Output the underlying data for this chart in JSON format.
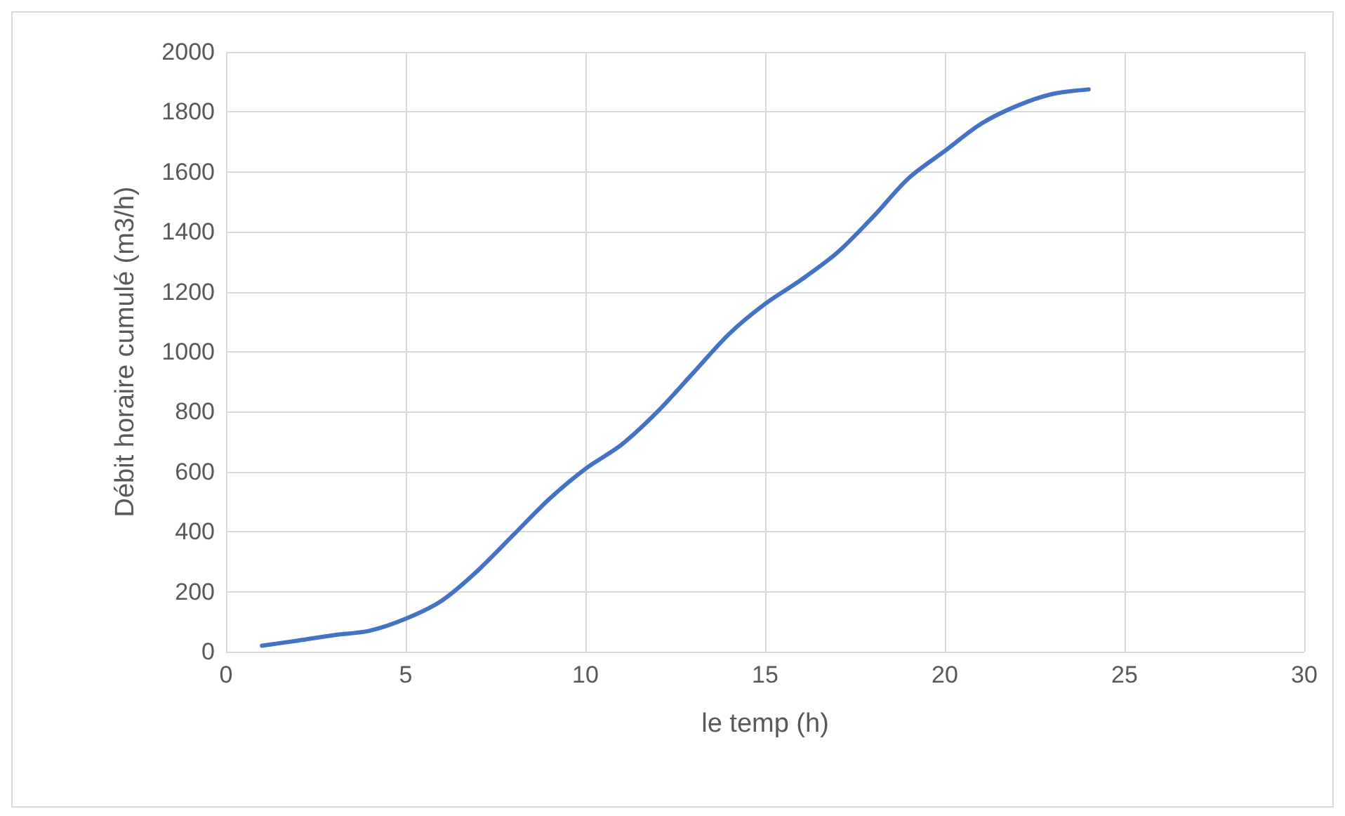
{
  "chart_data": {
    "type": "line",
    "xlabel": "le temp (h)",
    "ylabel": "Débit horaire cumulé (m3/h)",
    "x": [
      1,
      2,
      3,
      4,
      5,
      6,
      7,
      8,
      9,
      10,
      11,
      12,
      13,
      14,
      15,
      16,
      17,
      18,
      19,
      20,
      21,
      22,
      23,
      24
    ],
    "series": [
      {
        "color": "#4472c4",
        "values": [
          20,
          37,
          55,
          70,
          110,
          170,
          270,
          390,
          510,
          610,
          690,
          800,
          930,
          1060,
          1160,
          1240,
          1330,
          1450,
          1580,
          1670,
          1760,
          1820,
          1860,
          1875
        ]
      }
    ],
    "xlim": [
      0,
      30
    ],
    "xticks": [
      0,
      5,
      10,
      15,
      20,
      25,
      30
    ],
    "ylim": [
      0,
      2000
    ],
    "yticks": [
      0,
      200,
      400,
      600,
      800,
      1000,
      1200,
      1400,
      1600,
      1800,
      2000
    ],
    "grid": true,
    "marker": "none",
    "line_style": "solid"
  }
}
